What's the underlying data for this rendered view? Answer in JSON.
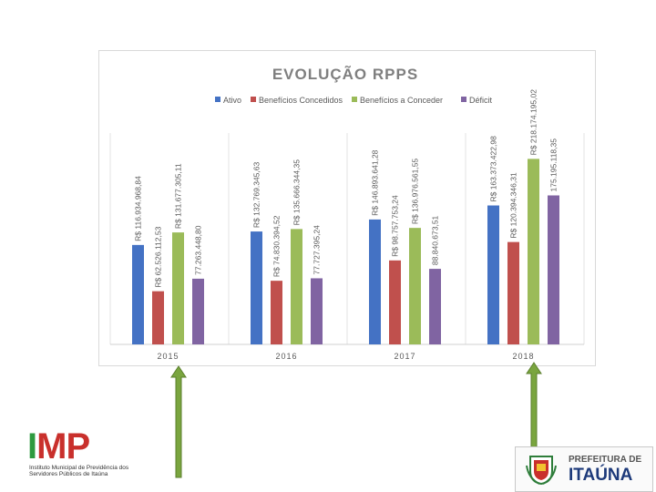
{
  "chart_data": {
    "type": "bar",
    "title": "EVOLUÇÃO RPPS",
    "categories": [
      "2015",
      "2016",
      "2017",
      "2018"
    ],
    "series": [
      {
        "name": "Ativo",
        "color": "#4472c4",
        "values": [
          116934968.84,
          132769345.63,
          146893641.28,
          163373422.98
        ],
        "labels": [
          "R$ 116.934.968,84",
          "R$ 132.769.345,63",
          "R$ 146.893.641,28",
          "R$ 163.373.422,98"
        ]
      },
      {
        "name": "Benefícios Concedidos",
        "color": "#c0504d",
        "values": [
          62526112.53,
          74830394.52,
          98757753.24,
          120394346.31
        ],
        "labels": [
          "R$ 62.526.112,53",
          "R$ 74.830.394,52",
          "R$ 98.757.753,24",
          "R$ 120.394.346,31"
        ]
      },
      {
        "name": "Benefícios a Conceder",
        "color": "#9bbb59",
        "values": [
          131677305.11,
          135666344.35,
          136976561.55,
          218174195.02
        ],
        "labels": [
          "R$ 131.677.305,11",
          "R$ 135.666.344,35",
          "R$ 136.976.561,55",
          "R$ 218.174.195,02"
        ]
      },
      {
        "name": "Déficit",
        "color": "#8064a2",
        "values": [
          77263448.8,
          77727395.24,
          88840673.51,
          175195118.35
        ],
        "labels": [
          "77.263.448,80",
          "77.727.395,24",
          "88.840.673,51",
          "175.195.118,35"
        ]
      }
    ],
    "ylim": [
      0,
      270000000
    ],
    "grid": "vertical separators",
    "legend": "top"
  },
  "logos": {
    "imp_letters": "IMP",
    "imp_subtitle": "Instituto Municipal de Previdência dos Servidores Públicos de Itaúna",
    "prefeitura_top": "PREFEITURA DE",
    "prefeitura_name": "ITAÚNA"
  },
  "colors": {
    "arrow": "#7aa53f",
    "axis": "#d0d0d0",
    "title": "#7f7f7f",
    "imp_green": "#2e9a3f",
    "imp_red": "#c9302c",
    "itauna_blue": "#1d3a7a"
  }
}
